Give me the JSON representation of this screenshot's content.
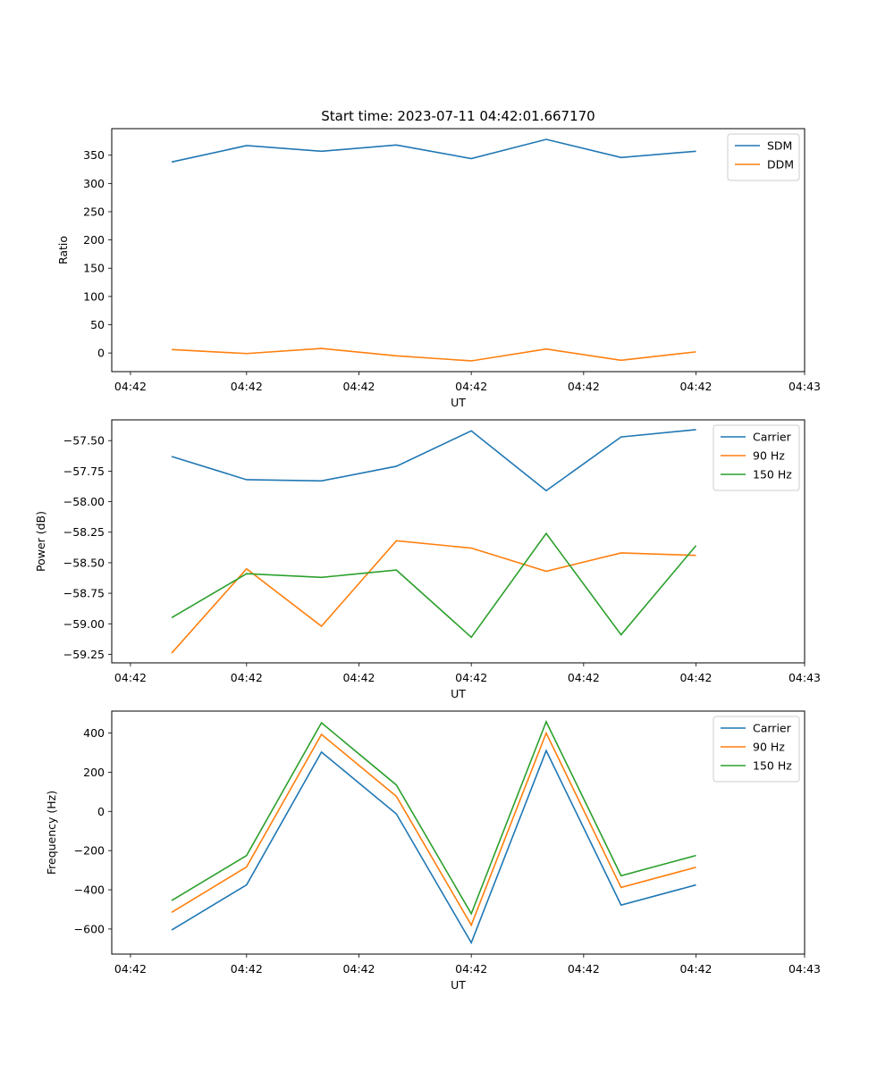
{
  "chart_data": [
    {
      "type": "line",
      "title": "Start time: 2023-07-11 04:42:01.667170",
      "xlabel": "UT",
      "ylabel": "Ratio",
      "x": [
        1,
        2,
        3,
        4,
        5,
        6,
        7,
        8
      ],
      "xlim": [
        0.2,
        9.45
      ],
      "xticks": [
        0.45,
        2,
        3.5,
        5,
        6.5,
        8,
        9.45
      ],
      "xtick_labels": [
        "04:42",
        "04:42",
        "04:42",
        "04:42",
        "04:42",
        "04:42",
        "04:43"
      ],
      "ylim": [
        -33,
        397
      ],
      "yticks": [
        0,
        50,
        100,
        150,
        200,
        250,
        300,
        350
      ],
      "ytick_labels": [
        "0",
        "50",
        "100",
        "150",
        "200",
        "250",
        "300",
        "350"
      ],
      "grid": false,
      "legend": "top-right",
      "series": [
        {
          "name": "SDM",
          "color": "#1f77b4",
          "values": [
            338,
            367,
            357,
            368,
            344,
            378,
            346,
            357
          ]
        },
        {
          "name": "DDM",
          "color": "#ff7f0e",
          "values": [
            6,
            -1,
            8,
            -5,
            -14,
            7,
            -13,
            2
          ]
        }
      ]
    },
    {
      "type": "line",
      "title": "",
      "xlabel": "UT",
      "ylabel": "Power (dB)",
      "x": [
        1,
        2,
        3,
        4,
        5,
        6,
        7,
        8
      ],
      "xlim": [
        0.2,
        9.45
      ],
      "xticks": [
        0.45,
        2,
        3.5,
        5,
        6.5,
        8,
        9.45
      ],
      "xtick_labels": [
        "04:42",
        "04:42",
        "04:42",
        "04:42",
        "04:42",
        "04:42",
        "04:43"
      ],
      "ylim": [
        -59.32,
        -57.33
      ],
      "yticks": [
        -57.5,
        -57.75,
        -58.0,
        -58.25,
        -58.5,
        -58.75,
        -59.0,
        -59.25
      ],
      "ytick_labels": [
        "−57.50",
        "−57.75",
        "−58.00",
        "−58.25",
        "−58.50",
        "−58.75",
        "−59.00",
        "−59.25"
      ],
      "grid": false,
      "legend": "top-right",
      "series": [
        {
          "name": "Carrier",
          "color": "#1f77b4",
          "values": [
            -57.63,
            -57.82,
            -57.83,
            -57.71,
            -57.42,
            -57.91,
            -57.47,
            -57.41
          ]
        },
        {
          "name": "90 Hz",
          "color": "#ff7f0e",
          "values": [
            -59.24,
            -58.55,
            -59.02,
            -58.32,
            -58.38,
            -58.57,
            -58.42,
            -58.44
          ]
        },
        {
          "name": "150 Hz",
          "color": "#2ca02c",
          "values": [
            -58.95,
            -58.59,
            -58.62,
            -58.56,
            -59.11,
            -58.26,
            -59.09,
            -58.36
          ]
        }
      ]
    },
    {
      "type": "line",
      "title": "",
      "xlabel": "UT",
      "ylabel": "Frequency (Hz)",
      "x": [
        1,
        2,
        3,
        4,
        5,
        6,
        7,
        8
      ],
      "xlim": [
        0.2,
        9.45
      ],
      "xticks": [
        0.45,
        2,
        3.5,
        5,
        6.5,
        8,
        9.45
      ],
      "xtick_labels": [
        "04:42",
        "04:42",
        "04:42",
        "04:42",
        "04:42",
        "04:42",
        "04:43"
      ],
      "ylim": [
        -728,
        512
      ],
      "yticks": [
        400,
        200,
        0,
        -200,
        -400,
        -600
      ],
      "ytick_labels": [
        "400",
        "200",
        "0",
        "−200",
        "−400",
        "−600"
      ],
      "grid": false,
      "legend": "top-right",
      "series": [
        {
          "name": "Carrier",
          "color": "#1f77b4",
          "values": [
            -605,
            -375,
            303,
            -13,
            -670,
            310,
            -478,
            -375
          ]
        },
        {
          "name": "90 Hz",
          "color": "#ff7f0e",
          "values": [
            -515,
            -283,
            393,
            77,
            -580,
            400,
            -388,
            -285
          ]
        },
        {
          "name": "150 Hz",
          "color": "#2ca02c",
          "values": [
            -455,
            -225,
            452,
            135,
            -522,
            458,
            -328,
            -225
          ]
        }
      ]
    }
  ]
}
